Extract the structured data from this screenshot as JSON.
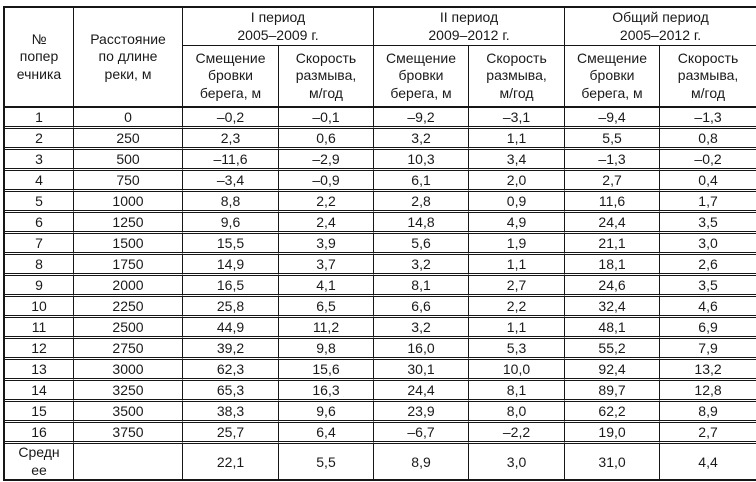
{
  "table": {
    "header": {
      "col_number": "№\nпопер\nечника",
      "col_distance": "Расстояние\nпо длине\nреки, м",
      "period_groups": [
        {
          "title": "I период\n2005–2009 г."
        },
        {
          "title": "II период\n2009–2012 г."
        },
        {
          "title": "Общий период\n2005–2012 г."
        }
      ],
      "sub_displacement": "Смещение\nбровки\nберега, м",
      "sub_rate": "Скорость\nразмыва,\nм/год"
    },
    "rows": [
      {
        "num": "1",
        "distance": "0",
        "values": [
          "–0,2",
          "–0,1",
          "–9,2",
          "–3,1",
          "–9,4",
          "–1,3"
        ]
      },
      {
        "num": "2",
        "distance": "250",
        "values": [
          "2,3",
          "0,6",
          "3,2",
          "1,1",
          "5,5",
          "0,8"
        ]
      },
      {
        "num": "3",
        "distance": "500",
        "values": [
          "–11,6",
          "–2,9",
          "10,3",
          "3,4",
          "–1,3",
          "–0,2"
        ]
      },
      {
        "num": "4",
        "distance": "750",
        "values": [
          "–3,4",
          "–0,9",
          "6,1",
          "2,0",
          "2,7",
          "0,4"
        ]
      },
      {
        "num": "5",
        "distance": "1000",
        "values": [
          "8,8",
          "2,2",
          "2,8",
          "0,9",
          "11,6",
          "1,7"
        ]
      },
      {
        "num": "6",
        "distance": "1250",
        "values": [
          "9,6",
          "2,4",
          "14,8",
          "4,9",
          "24,4",
          "3,5"
        ]
      },
      {
        "num": "7",
        "distance": "1500",
        "values": [
          "15,5",
          "3,9",
          "5,6",
          "1,9",
          "21,1",
          "3,0"
        ]
      },
      {
        "num": "8",
        "distance": "1750",
        "values": [
          "14,9",
          "3,7",
          "3,2",
          "1,1",
          "18,1",
          "2,6"
        ]
      },
      {
        "num": "9",
        "distance": "2000",
        "values": [
          "16,5",
          "4,1",
          "8,1",
          "2,7",
          "24,6",
          "3,5"
        ]
      },
      {
        "num": "10",
        "distance": "2250",
        "values": [
          "25,8",
          "6,5",
          "6,6",
          "2,2",
          "32,4",
          "4,6"
        ]
      },
      {
        "num": "11",
        "distance": "2500",
        "values": [
          "44,9",
          "11,2",
          "3,2",
          "1,1",
          "48,1",
          "6,9"
        ]
      },
      {
        "num": "12",
        "distance": "2750",
        "values": [
          "39,2",
          "9,8",
          "16,0",
          "5,3",
          "55,2",
          "7,9"
        ]
      },
      {
        "num": "13",
        "distance": "3000",
        "values": [
          "62,3",
          "15,6",
          "30,1",
          "10,0",
          "92,4",
          "13,2"
        ]
      },
      {
        "num": "14",
        "distance": "3250",
        "values": [
          "65,3",
          "16,3",
          "24,4",
          "8,1",
          "89,7",
          "12,8"
        ]
      },
      {
        "num": "15",
        "distance": "3500",
        "values": [
          "38,3",
          "9,6",
          "23,9",
          "8,0",
          "62,2",
          "8,9"
        ]
      },
      {
        "num": "16",
        "distance": "3750",
        "values": [
          "25,7",
          "6,4",
          "–6,7",
          "–2,2",
          "19,0",
          "2,7"
        ]
      }
    ],
    "average_row": {
      "label": "Средн\nее",
      "distance": "",
      "values": [
        "22,1",
        "5,5",
        "8,9",
        "3,0",
        "31,0",
        "4,4"
      ]
    }
  },
  "colors": {
    "border": "#161616",
    "text": "#1a1a1a",
    "background": "#ffffff"
  }
}
